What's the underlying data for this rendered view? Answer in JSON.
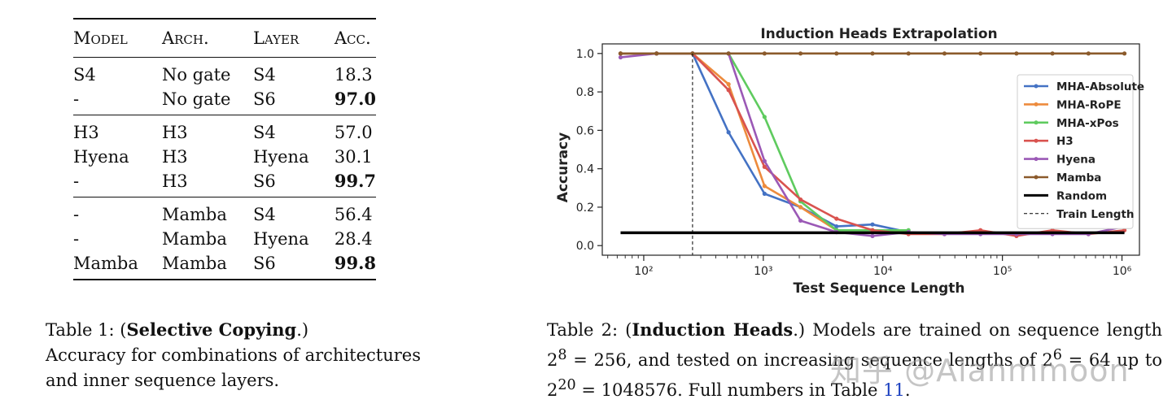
{
  "table1": {
    "headers": [
      "Model",
      "Arch.",
      "Layer",
      "Acc."
    ],
    "groups": [
      [
        [
          "S4",
          "No gate",
          "S4",
          "18.3",
          false
        ],
        [
          "-",
          "No gate",
          "S6",
          "97.0",
          true
        ]
      ],
      [
        [
          "H3",
          "H3",
          "S4",
          "57.0",
          false
        ],
        [
          "Hyena",
          "H3",
          "Hyena",
          "30.1",
          false
        ],
        [
          "-",
          "H3",
          "S6",
          "99.7",
          true
        ]
      ],
      [
        [
          "-",
          "Mamba",
          "S4",
          "56.4",
          false
        ],
        [
          "-",
          "Mamba",
          "Hyena",
          "28.4",
          false
        ],
        [
          "Mamba",
          "Mamba",
          "S6",
          "99.8",
          true
        ]
      ]
    ]
  },
  "caption1": {
    "prefix": "Table 1: (",
    "bold": "Selective Copying",
    "suffix": ".)",
    "line2": "Accuracy for combinations of architectures",
    "line3": "and inner sequence layers."
  },
  "caption2": {
    "prefix": "Table 2: (",
    "bold": "Induction Heads",
    "body": ".) Models are trained on sequence length 2",
    "exp1": "8",
    "body2": " = 256, and tested on increasing sequence lengths of 2",
    "exp2": "6",
    "body3": " = 64 up to 2",
    "exp3": "20",
    "body4": " = 1048576. Full numbers in Table ",
    "link": "11",
    "end": "."
  },
  "watermark": "知乎 @Alanmmoon",
  "chart_data": {
    "type": "line",
    "title": "Induction Heads Extrapolation",
    "xlabel": "Test Sequence Length",
    "ylabel": "Accuracy",
    "xscale": "log2",
    "xlim": [
      45,
      1400000
    ],
    "ylim": [
      -0.05,
      1.05
    ],
    "x_tick_labels": [
      "10²",
      "10³",
      "10⁴",
      "10⁵",
      "10⁶"
    ],
    "x_ticks": [
      100,
      1000,
      10000,
      100000,
      1000000
    ],
    "y_ticks": [
      0.0,
      0.2,
      0.4,
      0.6,
      0.8,
      1.0
    ],
    "y_tick_labels": [
      "0.0",
      "0.2",
      "0.4",
      "0.6",
      "0.8",
      "1.0"
    ],
    "x": [
      64,
      128,
      256,
      512,
      1024,
      2048,
      4096,
      8192,
      16384,
      32768,
      65536,
      131072,
      262144,
      524288,
      1048576
    ],
    "legend_position": "right",
    "series": [
      {
        "name": "MHA-Absolute",
        "color": "#4472c4",
        "values": [
          1.0,
          1.0,
          1.0,
          0.59,
          0.27,
          0.2,
          0.1,
          0.11,
          0.07,
          null,
          null,
          null,
          null,
          null,
          null
        ]
      },
      {
        "name": "MHA-RoPE",
        "color": "#ed8b3d",
        "values": [
          1.0,
          1.0,
          1.0,
          0.84,
          0.31,
          0.2,
          0.08,
          0.08,
          0.07,
          null,
          null,
          null,
          null,
          null,
          null
        ]
      },
      {
        "name": "MHA-xPos",
        "color": "#5fcb5f",
        "values": [
          1.0,
          1.0,
          1.0,
          1.0,
          0.67,
          0.23,
          0.08,
          0.08,
          0.08,
          null,
          null,
          null,
          null,
          null,
          null
        ]
      },
      {
        "name": "H3",
        "color": "#d9534f",
        "values": [
          1.0,
          1.0,
          1.0,
          0.81,
          0.41,
          0.24,
          0.14,
          0.08,
          0.06,
          0.06,
          0.08,
          0.05,
          0.08,
          0.06,
          0.08
        ]
      },
      {
        "name": "Hyena",
        "color": "#9b59b6",
        "values": [
          0.98,
          1.0,
          1.0,
          1.0,
          0.44,
          0.13,
          0.07,
          0.05,
          0.07,
          0.06,
          0.06,
          0.06,
          0.06,
          0.06,
          0.1
        ]
      },
      {
        "name": "Mamba",
        "color": "#8b5a2b",
        "values": [
          1.0,
          1.0,
          1.0,
          1.0,
          1.0,
          1.0,
          1.0,
          1.0,
          1.0,
          1.0,
          1.0,
          1.0,
          1.0,
          1.0,
          1.0
        ]
      },
      {
        "name": "Random",
        "color": "#000000",
        "constant": 0.067
      },
      {
        "name": "Train Length",
        "color": "#000000",
        "vline": 256,
        "dashed": true
      }
    ]
  }
}
